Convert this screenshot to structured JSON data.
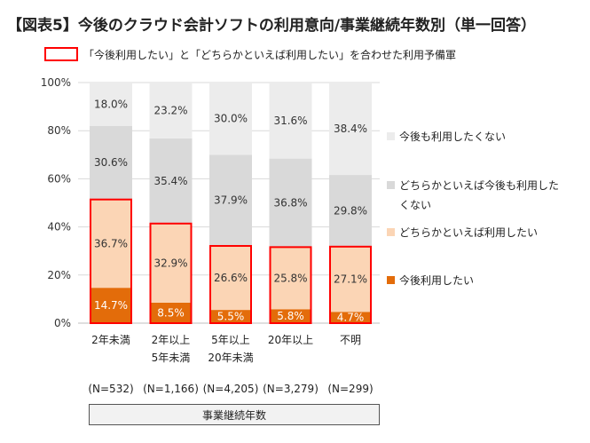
{
  "title": "【図表5】今後のクラウド会計ソフトの利用意向/事業継続年数別（単一回答）",
  "top_legend_text": "「今後利用したい」と「どちらかといえば利用したい」を合わせた利用予備軍",
  "x_axis_title": "事業継続年数",
  "colors": {
    "s1": "#e36c0a",
    "s2": "#fbd5b5",
    "s3": "#d9d9d9",
    "s4": "#ececec",
    "highlight": "#ff0000"
  },
  "chart_data": {
    "type": "bar",
    "stacked": true,
    "percent": true,
    "title": "【図表5】今後のクラウド会計ソフトの利用意向/事業継続年数別（単一回答）",
    "xlabel": "事業継続年数",
    "ylabel": "",
    "ylim": [
      0,
      100
    ],
    "yticks": [
      "0%",
      "20%",
      "40%",
      "60%",
      "80%",
      "100%"
    ],
    "categories": [
      [
        "2年未満"
      ],
      [
        "2年以上",
        "5年未満"
      ],
      [
        "5年以上",
        "20年未満"
      ],
      [
        "20年以上"
      ],
      [
        "不明"
      ]
    ],
    "n_labels": [
      "(N=532)",
      "(N=1,166)",
      "(N=4,205)",
      "(N=3,279)",
      "(N=299)"
    ],
    "series": [
      {
        "name": "今後利用したい",
        "values": [
          14.7,
          8.5,
          5.5,
          5.8,
          4.7
        ],
        "labels": [
          "14.7%",
          "8.5%",
          "5.5%",
          "5.8%",
          "4.7%"
        ]
      },
      {
        "name": "どちらかといえば利用したい",
        "values": [
          36.7,
          32.9,
          26.6,
          25.8,
          27.1
        ],
        "labels": [
          "36.7%",
          "32.9%",
          "26.6%",
          "25.8%",
          "27.1%"
        ]
      },
      {
        "name": "どちらかといえば今後も利用したくない",
        "legend_lines": [
          "どちらかといえば今後も利用した",
          "くない"
        ],
        "values": [
          30.6,
          35.4,
          37.9,
          36.8,
          29.8
        ],
        "labels": [
          "30.6%",
          "35.4%",
          "37.9%",
          "36.8%",
          "29.8%"
        ]
      },
      {
        "name": "今後も利用したくない",
        "values": [
          18.0,
          23.2,
          30.0,
          31.6,
          38.4
        ],
        "labels": [
          "18.0%",
          "23.2%",
          "30.0%",
          "31.6%",
          "38.4%"
        ]
      }
    ],
    "legend_position": "right"
  }
}
